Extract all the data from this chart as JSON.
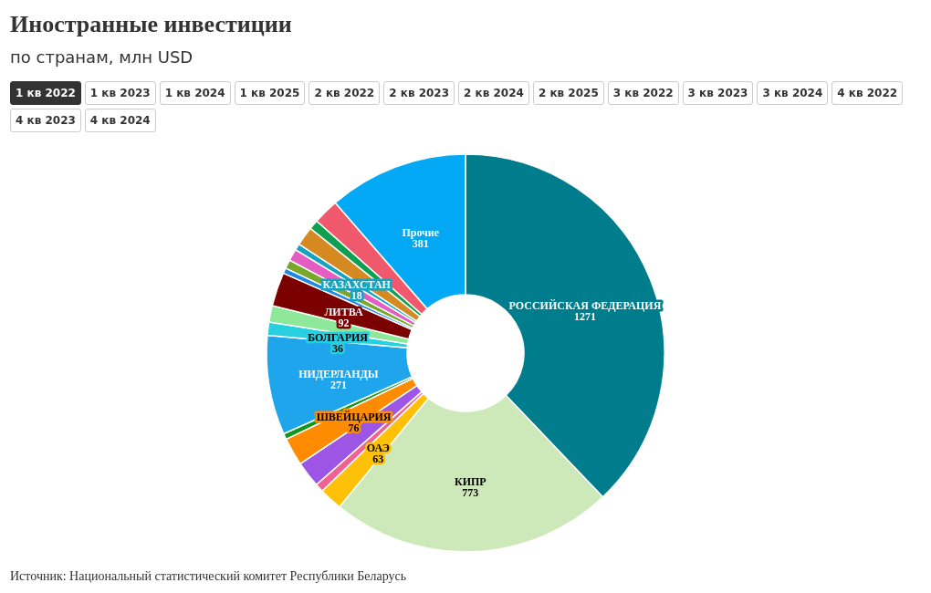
{
  "chart_data": {
    "type": "donut",
    "title": "Иностранные инвестиции",
    "subtitle": "по странам, млн USD",
    "categories": [
      "РОССИЙСКАЯ ФЕДЕРАЦИЯ",
      "КИПР",
      "ОАЭ",
      null,
      null,
      "ШВЕЙЦАРИЯ",
      null,
      "НИДЕРЛАНДЫ",
      "БОЛГАРИЯ",
      null,
      "ЛИТВА",
      null,
      null,
      null,
      "КАЗАХСТАН",
      null,
      null,
      null,
      "Прочие"
    ],
    "values": [
      1271,
      773,
      63,
      23,
      71,
      76,
      16,
      271,
      36,
      45,
      92,
      15,
      24,
      32,
      18,
      52,
      26,
      70,
      381
    ],
    "value_labels": [
      "1271",
      "773",
      "63",
      null,
      null,
      "76",
      null,
      "271",
      "36",
      null,
      "92",
      null,
      null,
      null,
      "18",
      null,
      null,
      null,
      "381"
    ],
    "colors": [
      "#007d8c",
      "#cde8b9",
      "#ffc107",
      "#f06292",
      "#9c55e5",
      "#ff8c00",
      "#109618",
      "#1ea5ec",
      "#26d0e0",
      "#8de89a",
      "#7b0000",
      "#1e88e5",
      "#77a82a",
      "#e55cc3",
      "#17a2c0",
      "#d48a20",
      "#0ea050",
      "#f0586c",
      "#03a9f4"
    ],
    "annotations": [
      "1 кв 2022",
      "1 кв 2023",
      "1 кв 2024",
      "1 кв 2025",
      "2 кв 2022",
      "2 кв 2023",
      "2 кв 2024",
      "2 кв 2025",
      "3 кв 2022",
      "3 кв 2023",
      "3 кв 2024",
      "4 кв 2022",
      "4 кв 2023",
      "4 кв 2024",
      "Источник: Национальный статистический комитет Республики Беларусь"
    ]
  }
}
